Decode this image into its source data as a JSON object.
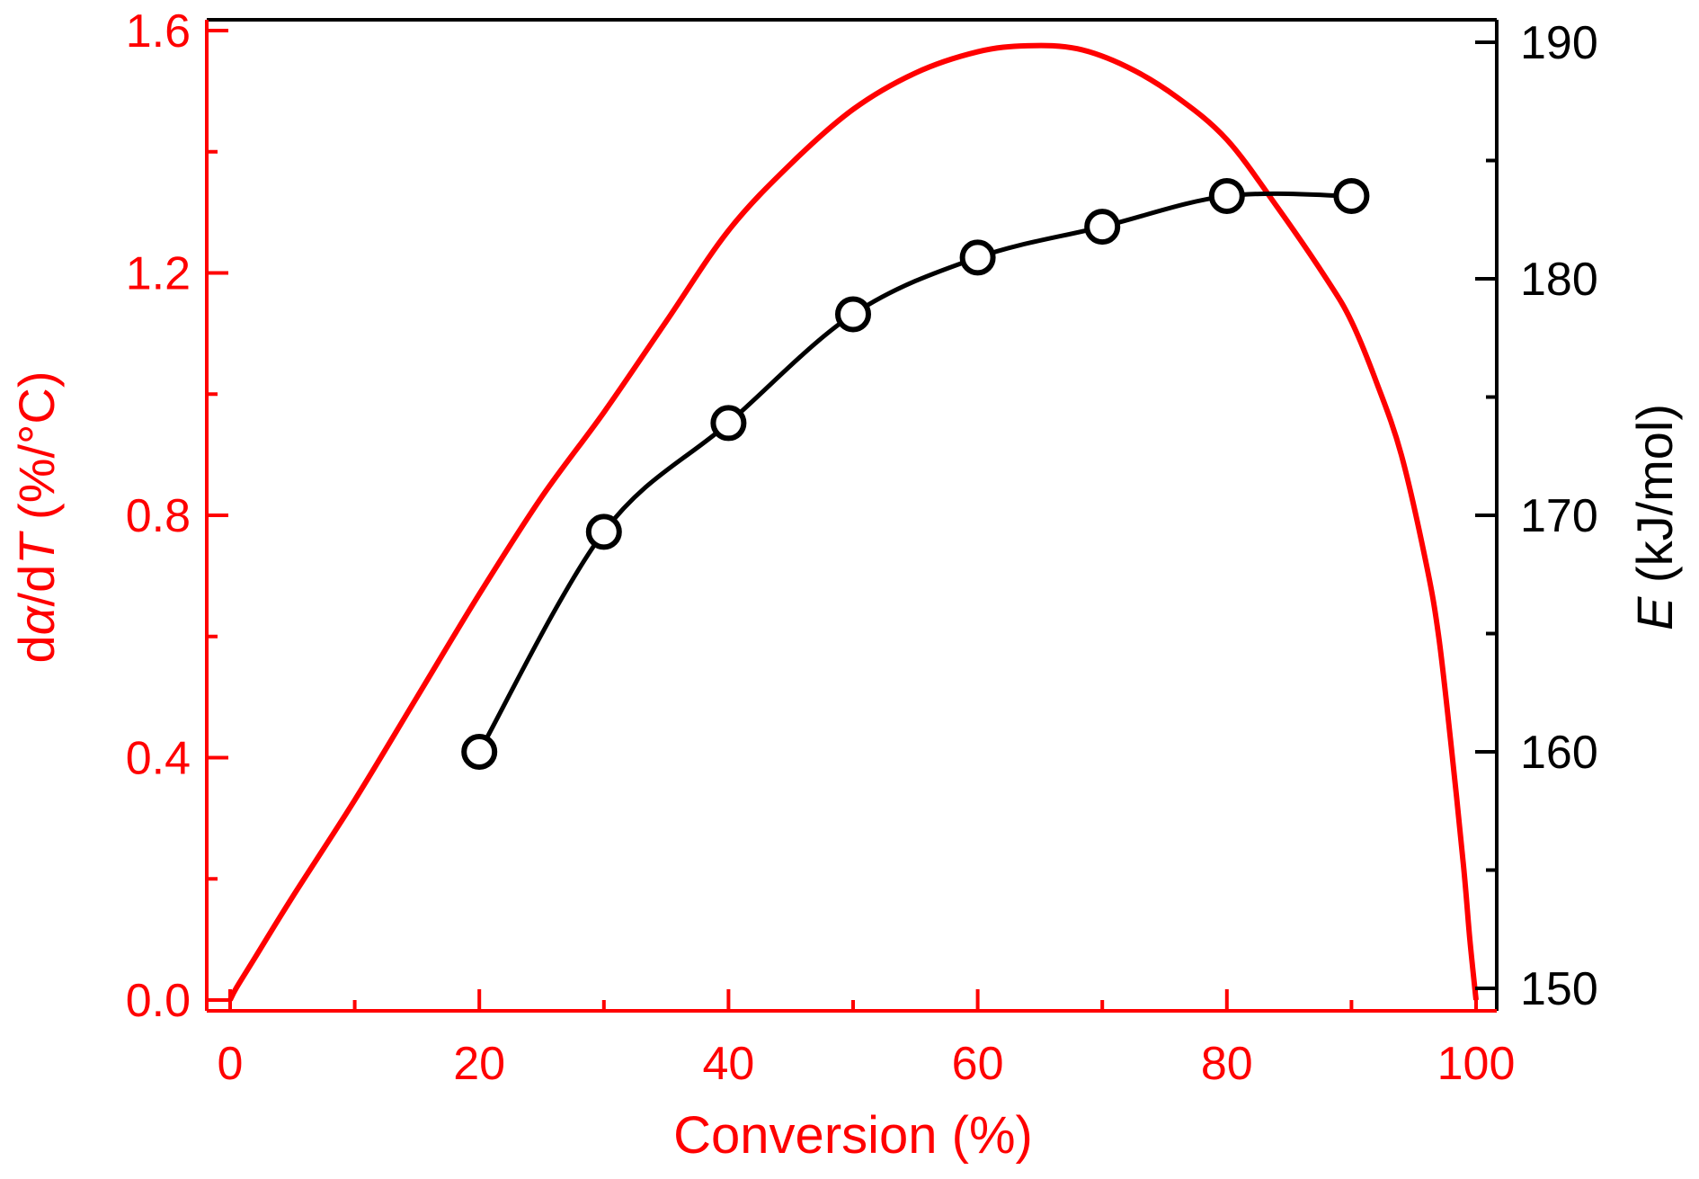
{
  "chart_data": {
    "type": "line",
    "xlabel": "Conversion (%)",
    "ylabel_left": {
      "prefix": "d",
      "italic1": "α",
      "mid": "/d",
      "italic2": "T",
      "suffix": " (%/°C)"
    },
    "ylabel_right": {
      "italic": "E",
      "suffix": " (kJ/mol)"
    },
    "xlim": [
      -3,
      102
    ],
    "ylim_left": [
      0,
      1.6
    ],
    "ylim_right": [
      150,
      190
    ],
    "x_ticks": [
      "0",
      "20",
      "40",
      "60",
      "80",
      "100"
    ],
    "y_left_ticks": [
      "0.0",
      "0.4",
      "0.8",
      "1.2",
      "1.6"
    ],
    "y_right_ticks": [
      "150",
      "160",
      "170",
      "180",
      "190"
    ],
    "grid": false,
    "colors": {
      "left_axis": "#ff0000",
      "right_axis": "#000000"
    },
    "series": [
      {
        "axis": "left",
        "style": "line",
        "color": "#ff0000",
        "x": [
          0,
          0.5,
          2,
          5,
          10,
          15,
          20,
          25,
          30,
          35,
          40,
          45,
          50,
          55,
          60,
          64,
          68,
          72,
          76,
          80,
          84,
          88,
          90,
          92,
          94,
          96,
          97,
          98,
          99,
          99.5,
          100
        ],
        "y": [
          0,
          0.02,
          0.07,
          0.17,
          0.33,
          0.5,
          0.67,
          0.83,
          0.97,
          1.12,
          1.27,
          1.38,
          1.47,
          1.53,
          1.565,
          1.575,
          1.57,
          1.54,
          1.49,
          1.42,
          1.31,
          1.19,
          1.12,
          1.02,
          0.9,
          0.72,
          0.6,
          0.42,
          0.22,
          0.1,
          0
        ]
      },
      {
        "axis": "right",
        "style": "line-marker",
        "marker": "open-circle",
        "color": "#000000",
        "x": [
          20,
          30,
          40,
          50,
          60,
          70,
          80,
          90
        ],
        "y": [
          160.0,
          169.3,
          173.9,
          178.5,
          180.9,
          182.2,
          183.5,
          183.5
        ]
      }
    ]
  }
}
